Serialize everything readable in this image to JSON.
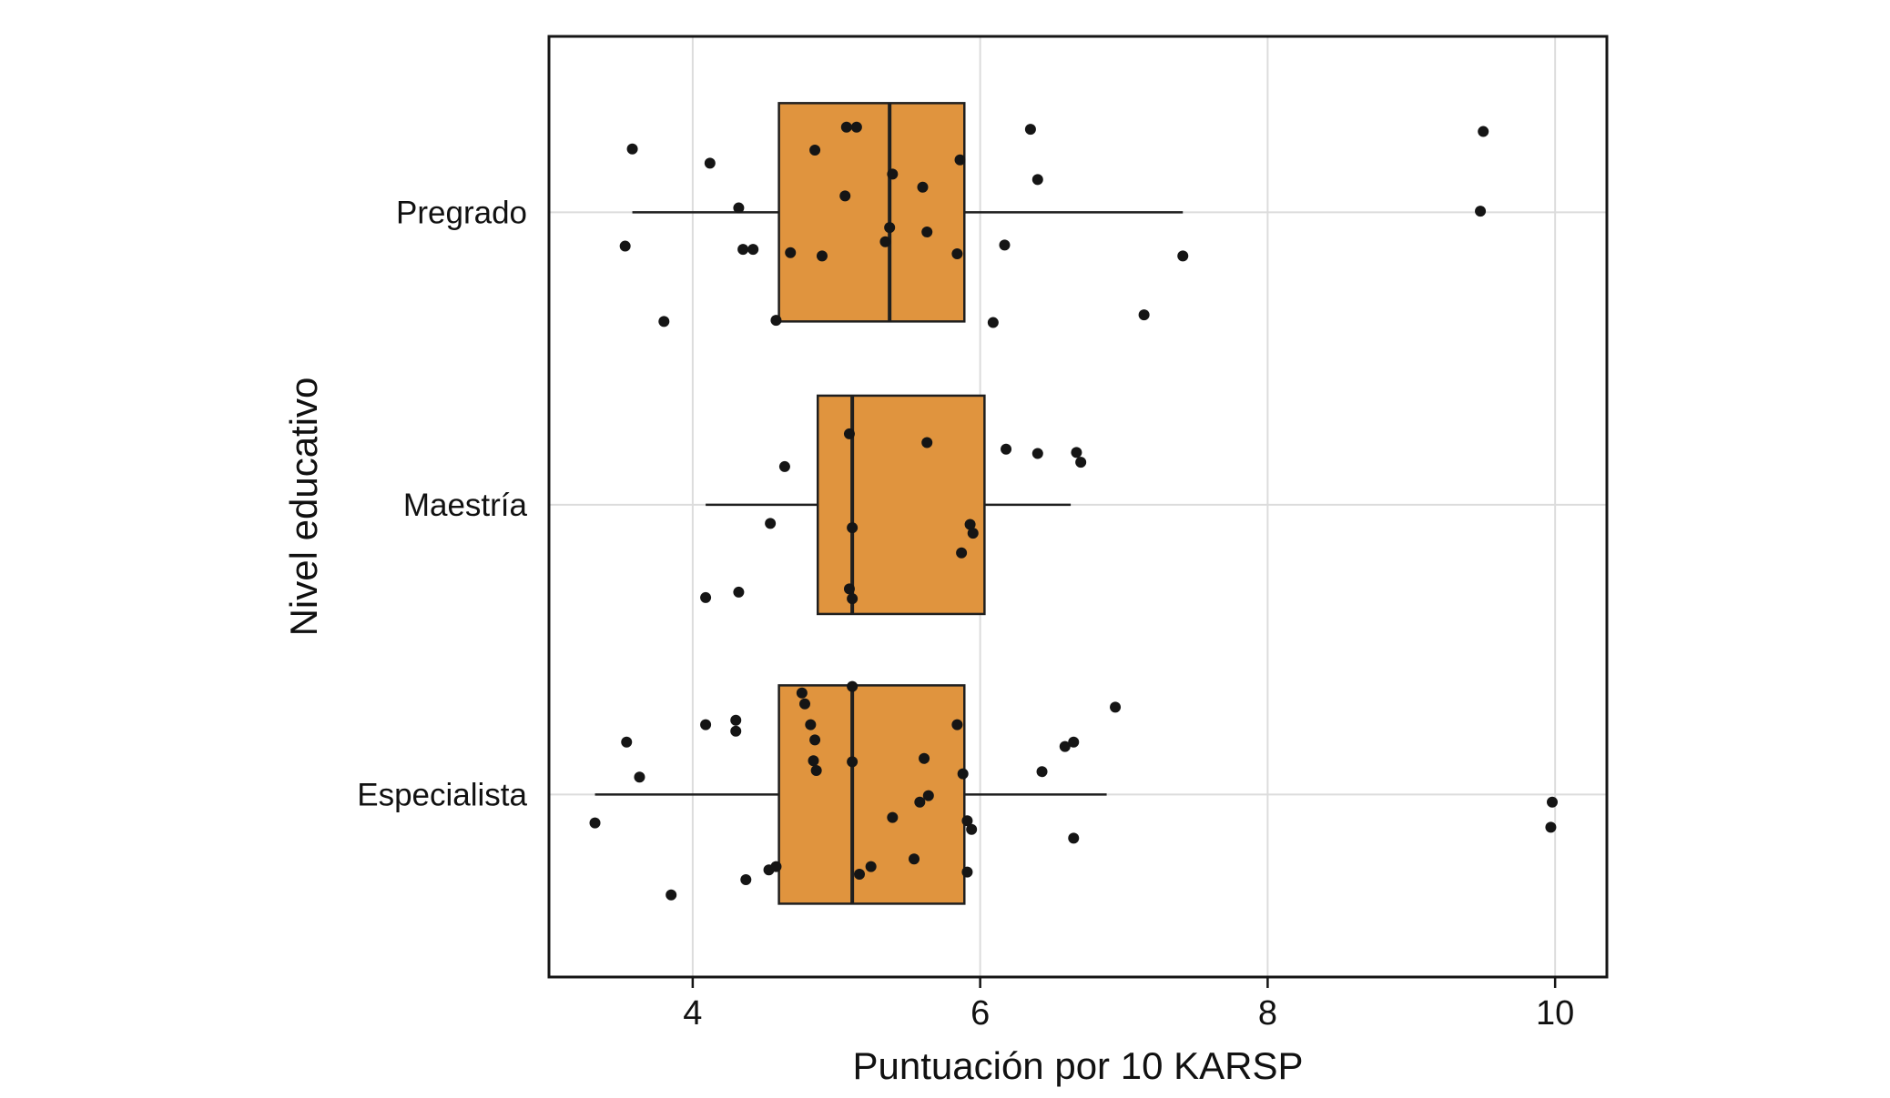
{
  "chart_data": {
    "type": "boxplot",
    "orientation": "horizontal",
    "title": "",
    "xlabel": "Puntuación por 10 KARSP",
    "ylabel": "Nivel educativo",
    "xlim": [
      3.0,
      10.36
    ],
    "xticks": [
      4,
      6,
      8,
      10
    ],
    "grid": true,
    "legend": "none",
    "categories": [
      "Pregrado",
      "Maestría",
      "Especialista"
    ],
    "style": {
      "box_fill": "#E0943E",
      "box_stroke": "#1F1F1F",
      "median_color": "#1F1F1F",
      "point_color": "#151515",
      "grid_color": "#DCDCDC",
      "panel_border": "#151515",
      "background": "#FFFFFF",
      "text_color": "#111111"
    },
    "series": [
      {
        "name": "Pregrado",
        "box": {
          "whisker_low": 3.58,
          "q1": 4.6,
          "median": 5.37,
          "q3": 5.89,
          "whisker_high": 7.41
        },
        "points": [
          [
            3.58,
            -0.58
          ],
          [
            4.12,
            -0.45
          ],
          [
            4.85,
            -0.57
          ],
          [
            5.07,
            -0.78
          ],
          [
            5.14,
            -0.78
          ],
          [
            6.35,
            -0.76
          ],
          [
            9.5,
            -0.74
          ],
          [
            5.39,
            -0.35
          ],
          [
            5.6,
            -0.23
          ],
          [
            5.86,
            -0.48
          ],
          [
            6.4,
            -0.3
          ],
          [
            9.48,
            -0.01
          ],
          [
            4.32,
            -0.04
          ],
          [
            5.06,
            -0.15
          ],
          [
            5.37,
            0.14
          ],
          [
            5.63,
            0.18
          ],
          [
            3.53,
            0.31
          ],
          [
            4.35,
            0.34
          ],
          [
            4.42,
            0.34
          ],
          [
            4.68,
            0.37
          ],
          [
            4.9,
            0.4
          ],
          [
            5.34,
            0.27
          ],
          [
            5.84,
            0.38
          ],
          [
            6.17,
            0.3
          ],
          [
            7.41,
            0.4
          ],
          [
            3.8,
            1.0
          ],
          [
            4.58,
            0.99
          ],
          [
            6.09,
            1.01
          ],
          [
            7.14,
            0.94
          ]
        ]
      },
      {
        "name": "Maestría",
        "box": {
          "whisker_low": 4.09,
          "q1": 4.87,
          "median": 5.11,
          "q3": 6.03,
          "whisker_high": 6.63
        },
        "points": [
          [
            5.09,
            -0.65
          ],
          [
            5.63,
            -0.57
          ],
          [
            6.18,
            -0.51
          ],
          [
            6.4,
            -0.47
          ],
          [
            6.67,
            -0.48
          ],
          [
            6.7,
            -0.39
          ],
          [
            4.64,
            -0.35
          ],
          [
            4.54,
            0.17
          ],
          [
            5.11,
            0.21
          ],
          [
            5.93,
            0.18
          ],
          [
            5.95,
            0.26
          ],
          [
            5.87,
            0.44
          ],
          [
            4.09,
            0.85
          ],
          [
            4.32,
            0.8
          ],
          [
            5.09,
            0.77
          ],
          [
            5.11,
            0.86
          ]
        ]
      },
      {
        "name": "Especialista",
        "box": {
          "whisker_low": 3.32,
          "q1": 4.6,
          "median": 5.11,
          "q3": 5.89,
          "whisker_high": 6.88
        },
        "points": [
          [
            4.76,
            -0.93
          ],
          [
            4.78,
            -0.83
          ],
          [
            5.11,
            -0.99
          ],
          [
            6.94,
            -0.8
          ],
          [
            4.09,
            -0.64
          ],
          [
            4.3,
            -0.68
          ],
          [
            4.3,
            -0.58
          ],
          [
            4.82,
            -0.64
          ],
          [
            4.85,
            -0.5
          ],
          [
            5.84,
            -0.64
          ],
          [
            6.59,
            -0.44
          ],
          [
            6.65,
            -0.48
          ],
          [
            3.54,
            -0.48
          ],
          [
            4.84,
            -0.31
          ],
          [
            4.86,
            -0.22
          ],
          [
            5.11,
            -0.3
          ],
          [
            5.61,
            -0.33
          ],
          [
            5.88,
            -0.19
          ],
          [
            6.43,
            -0.21
          ],
          [
            3.63,
            -0.16
          ],
          [
            5.39,
            0.21
          ],
          [
            5.58,
            0.07
          ],
          [
            5.64,
            0.01
          ],
          [
            3.32,
            0.26
          ],
          [
            5.91,
            0.24
          ],
          [
            5.94,
            0.32
          ],
          [
            9.98,
            0.07
          ],
          [
            9.97,
            0.3
          ],
          [
            6.65,
            0.4
          ],
          [
            4.37,
            0.78
          ],
          [
            4.53,
            0.69
          ],
          [
            5.16,
            0.73
          ],
          [
            5.24,
            0.66
          ],
          [
            5.54,
            0.59
          ],
          [
            5.91,
            0.71
          ],
          [
            3.85,
            0.92
          ],
          [
            4.58,
            0.66
          ]
        ]
      }
    ]
  }
}
